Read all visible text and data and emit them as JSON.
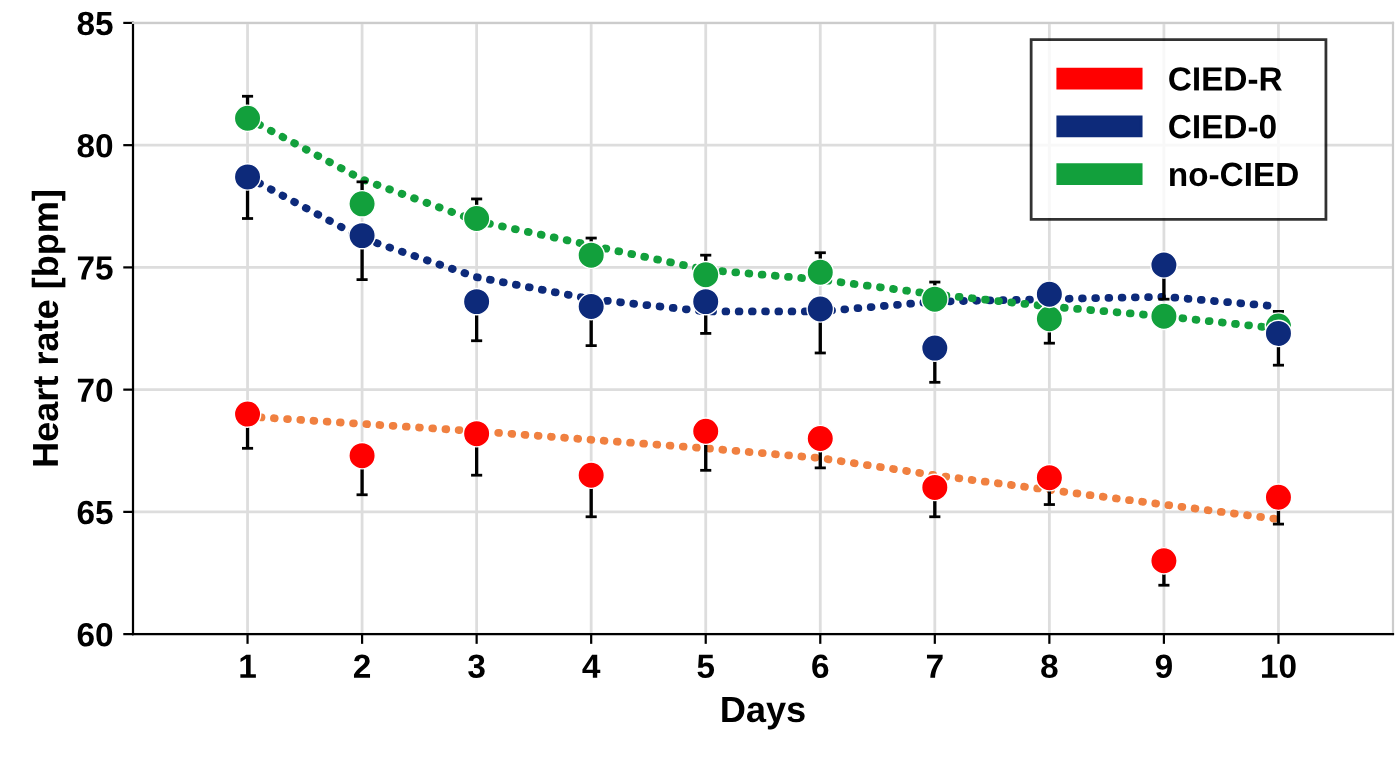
{
  "chart_data": {
    "type": "scatter",
    "xlabel": "Days",
    "ylabel": "Heart rate [bpm]",
    "x": [
      1,
      2,
      3,
      4,
      5,
      6,
      7,
      8,
      9,
      10
    ],
    "xlim": [
      0,
      11
    ],
    "xticks": [
      1,
      2,
      3,
      4,
      5,
      6,
      7,
      8,
      9,
      10
    ],
    "ylim": [
      60,
      85
    ],
    "yticks": [
      60,
      65,
      70,
      75,
      80,
      85
    ],
    "grid": true,
    "legend": "top right",
    "series": [
      {
        "name": "CIED-R",
        "marker": "circle",
        "color": "#ff0000",
        "values": [
          69.0,
          67.3,
          68.2,
          66.5,
          68.3,
          68.0,
          66.0,
          66.4,
          63.0,
          65.6
        ],
        "errors": [
          [
            67.6,
            69.0
          ],
          [
            65.7,
            67.3
          ],
          [
            66.5,
            68.2
          ],
          [
            64.8,
            66.5
          ],
          [
            66.7,
            68.3
          ],
          [
            66.8,
            68.0
          ],
          [
            64.8,
            66.0
          ],
          [
            65.3,
            66.4
          ],
          [
            62.0,
            63.0
          ],
          [
            64.5,
            65.6
          ]
        ]
      },
      {
        "name": "CIED-0",
        "marker": "circle",
        "color": "#0d2a7a",
        "values": [
          78.7,
          76.3,
          73.6,
          73.4,
          73.6,
          73.3,
          71.7,
          73.9,
          75.1,
          72.3
        ],
        "errors": [
          [
            77.0,
            78.7
          ],
          [
            74.5,
            76.3
          ],
          [
            72.0,
            73.6
          ],
          [
            71.8,
            73.4
          ],
          [
            72.3,
            73.6
          ],
          [
            71.5,
            73.3
          ],
          [
            70.3,
            71.7
          ],
          null,
          [
            73.7,
            75.1
          ],
          [
            71.0,
            72.3
          ]
        ]
      },
      {
        "name": "no-CIED",
        "marker": "circle",
        "color": "#12a03c",
        "values": [
          81.1,
          77.6,
          77.0,
          75.5,
          74.7,
          74.8,
          73.7,
          72.9,
          73.0,
          72.6
        ],
        "errors": [
          [
            81.1,
            82.0
          ],
          [
            77.6,
            78.5
          ],
          [
            77.0,
            77.8
          ],
          [
            75.5,
            76.2
          ],
          [
            74.7,
            75.5
          ],
          [
            74.8,
            75.6
          ],
          [
            73.7,
            74.4
          ],
          [
            71.9,
            72.9
          ],
          null,
          [
            72.6,
            73.2
          ]
        ]
      },
      {
        "type": "line",
        "line_style": "dotted",
        "color": "#f08040",
        "x": [
          1,
          3,
          5,
          6,
          7,
          8,
          9,
          10
        ],
        "values": [
          68.9,
          68.3,
          67.6,
          67.2,
          66.5,
          65.9,
          65.3,
          64.7
        ]
      },
      {
        "type": "line",
        "line_style": "dotted",
        "color": "#0d2a7a",
        "x": [
          1,
          2,
          3,
          4,
          5,
          6,
          7,
          8,
          9,
          10
        ],
        "values": [
          78.7,
          76.2,
          74.6,
          73.7,
          73.2,
          73.2,
          73.6,
          73.7,
          73.8,
          73.4
        ]
      },
      {
        "type": "line",
        "line_style": "dotted",
        "color": "#12a03c",
        "x": [
          1,
          2,
          3,
          4,
          5,
          6,
          7,
          8,
          9,
          10
        ],
        "values": [
          81.1,
          78.6,
          76.9,
          75.9,
          74.9,
          74.5,
          73.9,
          73.4,
          73.0,
          72.5
        ]
      }
    ]
  }
}
